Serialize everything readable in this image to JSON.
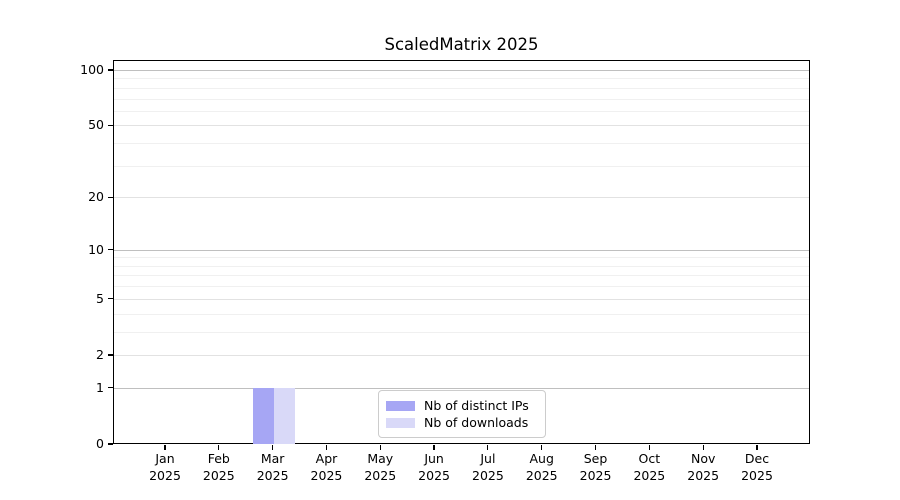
{
  "chart_data": {
    "type": "bar",
    "title": "ScaledMatrix 2025",
    "x_ticks": [
      {
        "month": "Jan",
        "year": "2025"
      },
      {
        "month": "Feb",
        "year": "2025"
      },
      {
        "month": "Mar",
        "year": "2025"
      },
      {
        "month": "Apr",
        "year": "2025"
      },
      {
        "month": "May",
        "year": "2025"
      },
      {
        "month": "Jun",
        "year": "2025"
      },
      {
        "month": "Jul",
        "year": "2025"
      },
      {
        "month": "Aug",
        "year": "2025"
      },
      {
        "month": "Sep",
        "year": "2025"
      },
      {
        "month": "Oct",
        "year": "2025"
      },
      {
        "month": "Nov",
        "year": "2025"
      },
      {
        "month": "Dec",
        "year": "2025"
      }
    ],
    "series": [
      {
        "name": "Nb of distinct IPs",
        "color": "#a6a6f4",
        "values": [
          0,
          0,
          1,
          0,
          0,
          0,
          0,
          0,
          0,
          0,
          0,
          0
        ]
      },
      {
        "name": "Nb of downloads",
        "color": "#d9d9f8",
        "values": [
          0,
          0,
          1,
          0,
          0,
          0,
          0,
          0,
          0,
          0,
          0,
          0
        ]
      }
    ],
    "y_axis": {
      "scale": "log1p",
      "major_ticks": [
        0,
        1,
        2,
        5,
        10,
        20,
        50,
        100
      ],
      "decade_ticks": [
        1,
        10,
        100
      ],
      "minor_ticks": [
        3,
        4,
        6,
        7,
        8,
        9,
        30,
        40,
        60,
        70,
        80,
        90
      ],
      "max_value_shown": 100
    },
    "legend": {
      "position": "lower center"
    },
    "grid": "both",
    "xlabel": "",
    "ylabel": ""
  },
  "colors": {
    "decade_grid": "#bfbfbf",
    "major_grid": "#e2e2e2",
    "minor_grid": "#f0f0f0",
    "spine": "#000000",
    "text": "#000000",
    "background": "#ffffff"
  }
}
